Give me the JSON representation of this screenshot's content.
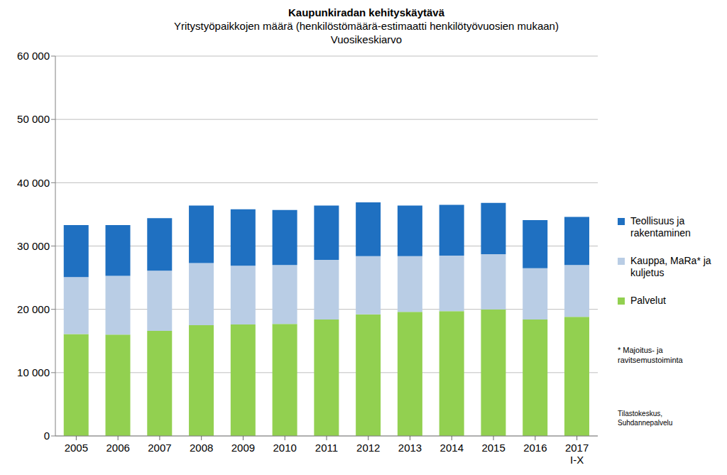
{
  "chart_data": {
    "type": "bar",
    "title": "Kaupunkiradan kehityskäytävä",
    "subtitle": [
      "Yritystyöpaikkojen määrä (henkilöstömäärä-estimaatti henkilötyövuosien mukaan)",
      "Vuosikeskiarvo"
    ],
    "categories": [
      "2005",
      "2006",
      "2007",
      "2008",
      "2009",
      "2010",
      "2011",
      "2012",
      "2013",
      "2014",
      "2015",
      "2016",
      "2017 I-X"
    ],
    "series": [
      {
        "name": "Palvelut",
        "color": "#92d050",
        "values": [
          16100,
          16000,
          16600,
          17500,
          17600,
          17700,
          18400,
          19200,
          19600,
          19700,
          20000,
          18400,
          18800
        ]
      },
      {
        "name": "Kauppa, MaRa* ja kuljetus",
        "color": "#b9cde5",
        "values": [
          9000,
          9300,
          9500,
          9800,
          9300,
          9300,
          9400,
          9200,
          8800,
          8800,
          8700,
          8100,
          8200
        ]
      },
      {
        "name": "Teollisuus ja rakentaminen",
        "color": "#1f70c1",
        "values": [
          8200,
          8000,
          8300,
          9100,
          8900,
          8700,
          8600,
          8500,
          8000,
          8000,
          8100,
          7600,
          7600
        ]
      }
    ],
    "stacked": true,
    "ylim": [
      0,
      60000
    ],
    "yticks": [
      0,
      {
        "value": 10000,
        "label": "10 000"
      },
      {
        "value": 20000,
        "label": "20 000"
      },
      {
        "value": 30000,
        "label": "30 000"
      },
      {
        "value": 40000,
        "label": "40 000"
      },
      {
        "value": 50000,
        "label": "50 000"
      },
      {
        "value": 60000,
        "label": "60 000"
      }
    ],
    "grid": true,
    "legend": "right",
    "annotations": [
      "* Majoitus- ja ravitsemustoiminta",
      "Tilastokeskus, Suhdannepalvelu"
    ]
  }
}
